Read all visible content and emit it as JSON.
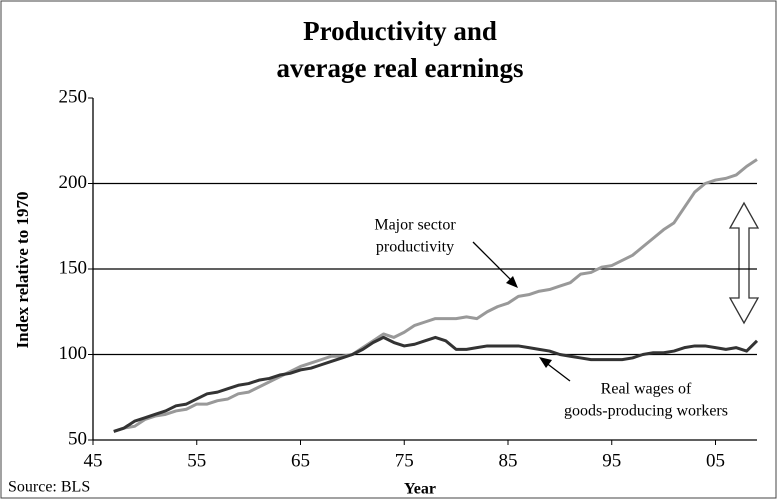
{
  "chart_data": {
    "type": "line",
    "title": [
      "Productivity and",
      "average real earnings"
    ],
    "xlabel": "Year",
    "ylabel": "Index relative to 1970",
    "source": "Source: BLS",
    "annotations": [
      [
        "Major sector",
        "productivity"
      ],
      [
        "Real wages of",
        "goods-producing workers"
      ]
    ],
    "x": [
      1947,
      1948,
      1949,
      1950,
      1951,
      1952,
      1953,
      1954,
      1955,
      1956,
      1957,
      1958,
      1959,
      1960,
      1961,
      1962,
      1963,
      1964,
      1965,
      1966,
      1967,
      1968,
      1969,
      1970,
      1971,
      1972,
      1973,
      1974,
      1975,
      1976,
      1977,
      1978,
      1979,
      1980,
      1981,
      1982,
      1983,
      1984,
      1985,
      1986,
      1987,
      1988,
      1989,
      1990,
      1991,
      1992,
      1993,
      1994,
      1995,
      1996,
      1997,
      1998,
      1999,
      2000,
      2001,
      2002,
      2003,
      2004,
      2005,
      2006,
      2007,
      2008,
      2009
    ],
    "series": [
      {
        "name": "Major sector productivity",
        "color": "#999999",
        "values": [
          55,
          57,
          58,
          62,
          64,
          65,
          67,
          68,
          71,
          71,
          73,
          74,
          77,
          78,
          81,
          84,
          87,
          90,
          93,
          95,
          97,
          99,
          99,
          100,
          104,
          108,
          112,
          110,
          113,
          117,
          119,
          121,
          121,
          121,
          122,
          121,
          125,
          128,
          130,
          134,
          135,
          137,
          138,
          140,
          142,
          147,
          148,
          151,
          152,
          155,
          158,
          163,
          168,
          173,
          177,
          186,
          195,
          200,
          202,
          203,
          205,
          210,
          214
        ]
      },
      {
        "name": "Real wages of goods-producing workers",
        "color": "#333333",
        "values": [
          55,
          57,
          61,
          63,
          65,
          67,
          70,
          71,
          74,
          77,
          78,
          80,
          82,
          83,
          85,
          86,
          88,
          89,
          91,
          92,
          94,
          96,
          98,
          100,
          103,
          107,
          110,
          107,
          105,
          106,
          108,
          110,
          108,
          103,
          103,
          104,
          105,
          105,
          105,
          105,
          104,
          103,
          102,
          100,
          99,
          98,
          97,
          97,
          97,
          97,
          98,
          100,
          101,
          101,
          102,
          104,
          105,
          105,
          104,
          103,
          104,
          102,
          108
        ]
      }
    ],
    "xlim": [
      1945,
      2009
    ],
    "xticks": [
      {
        "value": 1945,
        "label": "45"
      },
      {
        "value": 1955,
        "label": "55"
      },
      {
        "value": 1965,
        "label": "65"
      },
      {
        "value": 1975,
        "label": "75"
      },
      {
        "value": 1985,
        "label": "85"
      },
      {
        "value": 1995,
        "label": "95"
      },
      {
        "value": 2005,
        "label": "05"
      }
    ],
    "ylim": [
      50,
      250
    ],
    "yticks": [
      50,
      100,
      150,
      200,
      250
    ],
    "grid": true
  }
}
